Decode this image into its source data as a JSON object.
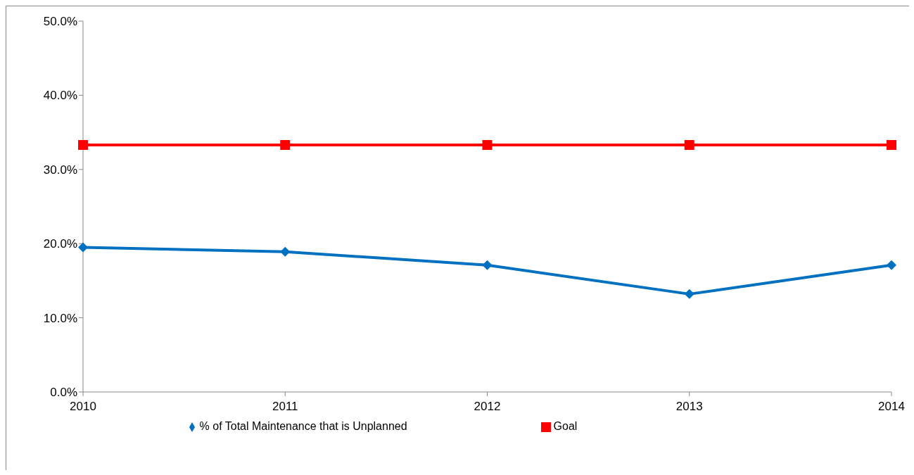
{
  "chart_data": {
    "type": "line",
    "categories": [
      "2010",
      "2011",
      "2012",
      "2013",
      "2014"
    ],
    "series": [
      {
        "name": "% of Total Maintenance that is Unplanned",
        "color": "#0070c0",
        "values": [
          19.5,
          18.9,
          17.1,
          13.2,
          17.1
        ],
        "marker": "diamond"
      },
      {
        "name": "Goal",
        "color": "#ff0000",
        "values": [
          33.3,
          33.3,
          33.3,
          33.3,
          33.3
        ],
        "marker": "square"
      }
    ],
    "ylim": [
      0,
      50
    ],
    "yticks": [
      {
        "value": 0,
        "label": "0.0%"
      },
      {
        "value": 10,
        "label": "10.0%"
      },
      {
        "value": 20,
        "label": "20.0%"
      },
      {
        "value": 30,
        "label": "30.0%"
      },
      {
        "value": 40,
        "label": "40.0%"
      },
      {
        "value": 50,
        "label": "50.0%"
      }
    ],
    "grid": false,
    "legend": "bottom"
  }
}
